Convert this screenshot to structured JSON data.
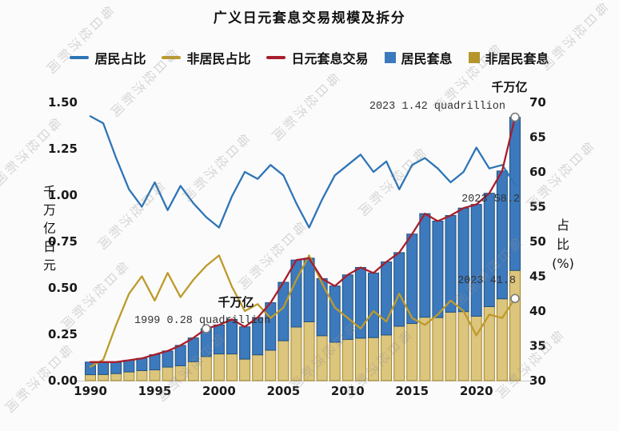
{
  "title": "广义日元套息交易规模及拆分",
  "watermark_text": "每日经济新闻",
  "legend": [
    {
      "id": "resident-share",
      "label": "居民占比",
      "marker": "line",
      "color": "#2e75b6"
    },
    {
      "id": "nonresident-share",
      "label": "非居民占比",
      "marker": "line",
      "color": "#bd9a2b"
    },
    {
      "id": "yen-carry-trade",
      "label": "日元套息交易",
      "marker": "line",
      "color": "#a81e2c"
    },
    {
      "id": "resident-carry",
      "label": "居民套息",
      "marker": "square",
      "color": "#3c79bd"
    },
    {
      "id": "nonresident-carry",
      "label": "非居民套息",
      "marker": "square",
      "color": "#b5952c"
    }
  ],
  "chart_data": {
    "type": "bar",
    "combo": [
      "stacked-bar",
      "line"
    ],
    "x": [
      1990,
      1991,
      1992,
      1993,
      1994,
      1995,
      1996,
      1997,
      1998,
      1999,
      2000,
      2001,
      2002,
      2003,
      2004,
      2005,
      2006,
      2007,
      2008,
      2009,
      2010,
      2011,
      2012,
      2013,
      2014,
      2015,
      2016,
      2017,
      2018,
      2019,
      2020,
      2021,
      2022,
      2023
    ],
    "x_ticks": [
      1990,
      1995,
      2000,
      2005,
      2010,
      2015,
      2020
    ],
    "left_axis": {
      "title": "千万亿日元",
      "min": 0,
      "max": 1.5,
      "ticks": [
        "0.00",
        "0.25",
        "0.50",
        "0.75",
        "1.00",
        "1.25",
        "1.50"
      ]
    },
    "right_axis": {
      "title": "占比(%)",
      "min": 30,
      "max": 70,
      "ticks": [
        30,
        35,
        40,
        45,
        50,
        55,
        60,
        65,
        70
      ]
    },
    "bars": {
      "stacked": true,
      "series": [
        {
          "id": "nonresident-carry",
          "name": "非居民套息",
          "axis": "left",
          "color": "#dcc57d",
          "border": "#a3862a",
          "values": [
            0.032,
            0.033,
            0.038,
            0.047,
            0.054,
            0.058,
            0.073,
            0.08,
            0.102,
            0.13,
            0.144,
            0.144,
            0.116,
            0.139,
            0.164,
            0.215,
            0.289,
            0.317,
            0.242,
            0.207,
            0.222,
            0.229,
            0.232,
            0.246,
            0.293,
            0.308,
            0.342,
            0.34,
            0.369,
            0.372,
            0.347,
            0.399,
            0.441,
            0.594
          ]
        },
        {
          "id": "resident-carry",
          "name": "居民套息",
          "axis": "left",
          "color": "#3c79bd",
          "border": "#20527f",
          "values": [
            0.068,
            0.067,
            0.062,
            0.063,
            0.066,
            0.082,
            0.087,
            0.11,
            0.128,
            0.15,
            0.156,
            0.186,
            0.174,
            0.201,
            0.256,
            0.315,
            0.361,
            0.343,
            0.308,
            0.303,
            0.348,
            0.381,
            0.348,
            0.394,
            0.397,
            0.482,
            0.558,
            0.52,
            0.521,
            0.558,
            0.603,
            0.611,
            0.689,
            0.826
          ]
        }
      ]
    },
    "lines": [
      {
        "id": "nonresident-share",
        "name": "非居民占比",
        "axis": "right",
        "color": "#bd9a2b",
        "values": [
          32.0,
          33.0,
          38.0,
          42.5,
          45.0,
          41.5,
          45.5,
          42.0,
          44.5,
          46.5,
          48.0,
          43.5,
          40.0,
          41.0,
          39.0,
          40.5,
          44.5,
          48.0,
          44.0,
          40.5,
          39.0,
          37.5,
          40.0,
          38.5,
          42.5,
          39.0,
          38.0,
          39.5,
          41.5,
          40.0,
          36.5,
          39.5,
          39.0,
          41.8
        ]
      },
      {
        "id": "resident-share",
        "name": "居民占比",
        "axis": "right",
        "color": "#2e75b6",
        "values": [
          68.0,
          67.0,
          62.0,
          57.5,
          55.0,
          58.5,
          54.5,
          58.0,
          55.5,
          53.5,
          52.0,
          56.5,
          60.0,
          59.0,
          61.0,
          59.5,
          55.5,
          52.0,
          56.0,
          59.5,
          61.0,
          62.5,
          60.0,
          61.5,
          57.5,
          61.0,
          62.0,
          60.5,
          58.5,
          60.0,
          63.5,
          60.5,
          61.0,
          58.2
        ]
      },
      {
        "id": "yen-carry-trade",
        "name": "日元套息交易",
        "axis": "left",
        "color": "#a81e2c",
        "values": [
          0.1,
          0.1,
          0.1,
          0.11,
          0.12,
          0.14,
          0.16,
          0.19,
          0.23,
          0.28,
          0.3,
          0.33,
          0.29,
          0.34,
          0.42,
          0.53,
          0.65,
          0.66,
          0.55,
          0.51,
          0.57,
          0.61,
          0.58,
          0.64,
          0.69,
          0.79,
          0.9,
          0.86,
          0.89,
          0.93,
          0.95,
          1.01,
          1.13,
          1.42
        ]
      }
    ],
    "annotations": [
      {
        "id": "unit-label-top",
        "text": "千万亿"
      },
      {
        "id": "peak-2023",
        "text": "2023 1.42 quadrillion"
      },
      {
        "id": "unit-label-mid",
        "text": "千万亿"
      },
      {
        "id": "point-1999",
        "text": "1999 0.28 quadrillion"
      },
      {
        "id": "resident-2023",
        "text": "2023 58.2"
      },
      {
        "id": "nonresident-2023",
        "text": "2023 41.8"
      }
    ],
    "markers": [
      {
        "year": 2023,
        "value": 1.42,
        "axis": "left"
      },
      {
        "year": 1999,
        "value": 0.28,
        "axis": "left"
      },
      {
        "year": 2023,
        "value": 41.8,
        "axis": "right"
      }
    ]
  }
}
